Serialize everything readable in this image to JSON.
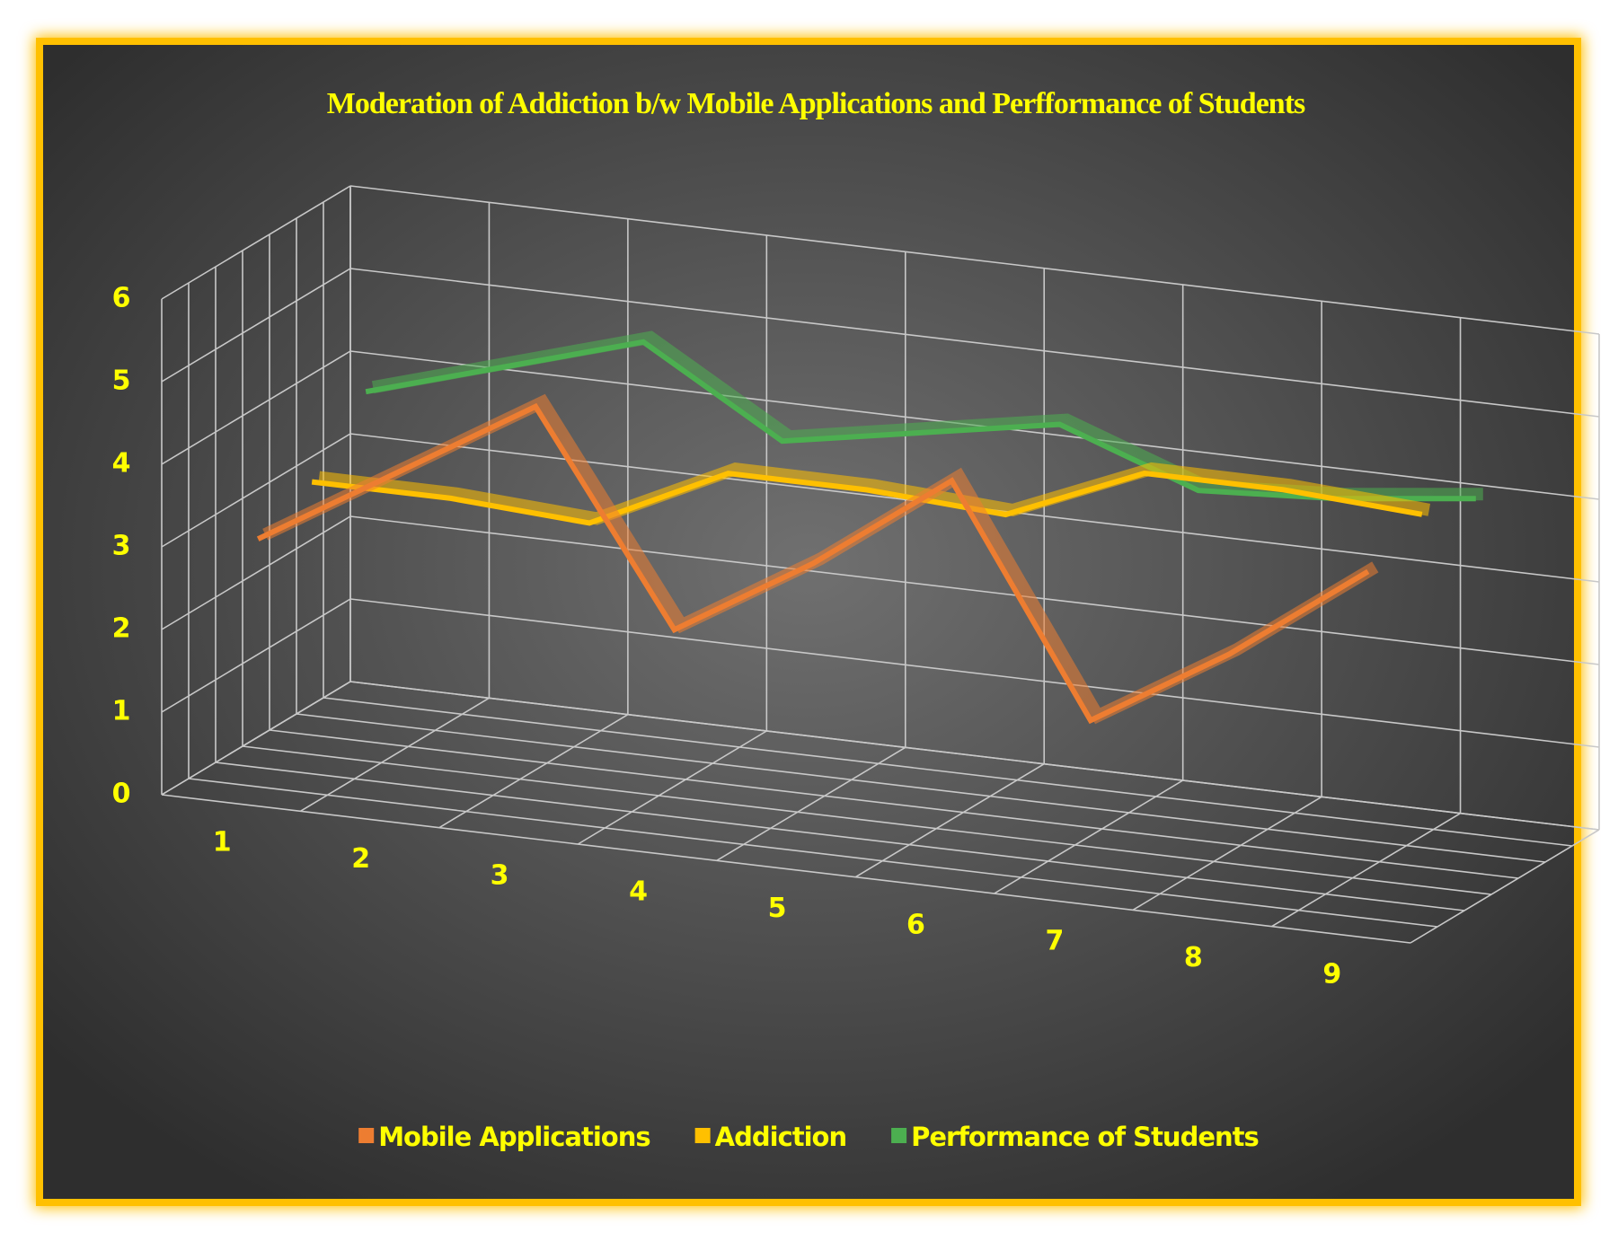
{
  "chart_data": {
    "type": "line3d",
    "title": "Moderation of Addiction b/w Mobile Applications and Perfformance of Students",
    "categories": [
      "1",
      "2",
      "3",
      "4",
      "5",
      "6",
      "7",
      "8",
      "9"
    ],
    "series": [
      {
        "name": "Mobile Applications",
        "color": "#ed7d31",
        "values": [
          3,
          4,
          5,
          2.5,
          3.5,
          4.7,
          2,
          3,
          4.2
        ]
      },
      {
        "name": "Addiction",
        "color": "#ffc000",
        "values": [
          3.3,
          3.3,
          3.2,
          4,
          4,
          3.9,
          4.6,
          4.6,
          4.5
        ]
      },
      {
        "name": "Performance of Students",
        "color": "#4caf50",
        "values": [
          4,
          4.5,
          5,
          4,
          4.3,
          4.6,
          4,
          4.1,
          4.3
        ]
      }
    ],
    "ylim": [
      0,
      6
    ],
    "yticks": [
      0,
      1,
      2,
      3,
      4,
      5,
      6
    ],
    "grid": true,
    "legend": "bottom"
  }
}
